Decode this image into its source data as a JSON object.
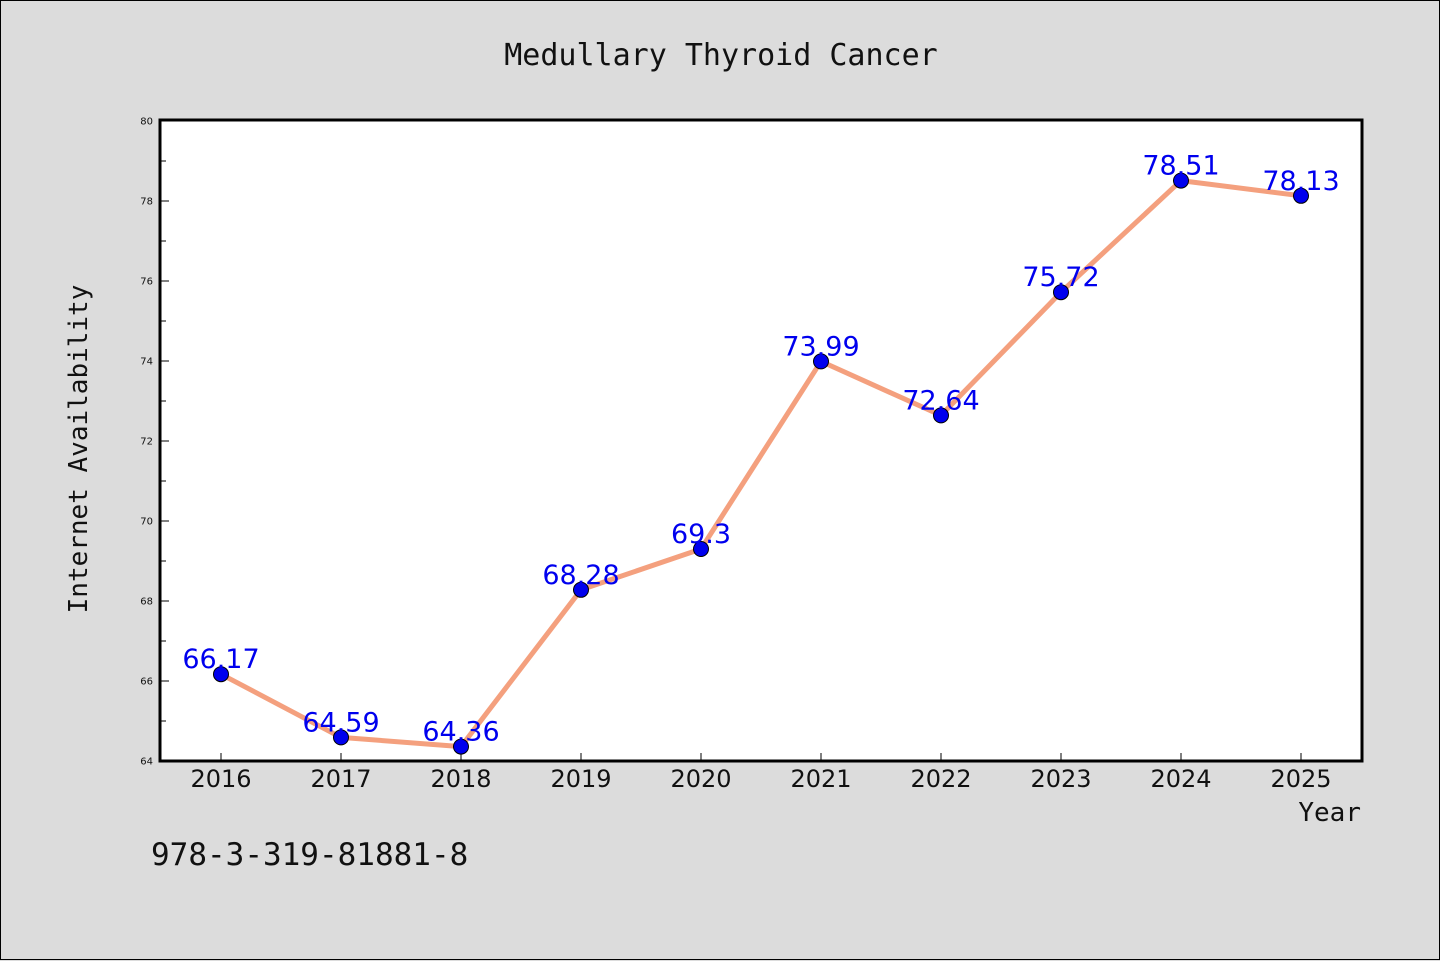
{
  "chart_data": {
    "type": "line",
    "title": "Medullary Thyroid Cancer",
    "xlabel": "Year",
    "ylabel": "Internet Availability",
    "categories": [
      "2016",
      "2017",
      "2018",
      "2019",
      "2020",
      "2021",
      "2022",
      "2023",
      "2024",
      "2025"
    ],
    "series": [
      {
        "values": [
          66.17,
          64.59,
          64.36,
          68.28,
          69.3,
          73.99,
          72.64,
          75.72,
          78.51,
          78.13
        ]
      }
    ],
    "data_labels": [
      "66.17",
      "64.59",
      "64.36",
      "68.28",
      "69.3",
      "73.99",
      "72.64",
      "75.72",
      "78.51",
      "78.13"
    ],
    "ylim": [
      64,
      80
    ],
    "yticks": [
      64,
      66,
      68,
      70,
      72,
      74,
      76,
      78,
      80
    ],
    "grid": false,
    "legend": "none",
    "colors": {
      "line": "#f4a07e",
      "marker": "#0000ee",
      "label": "#0000ee",
      "background": "#dcdcdc",
      "plot_background": "#ffffff"
    }
  },
  "footnote": "978-3-319-81881-8"
}
